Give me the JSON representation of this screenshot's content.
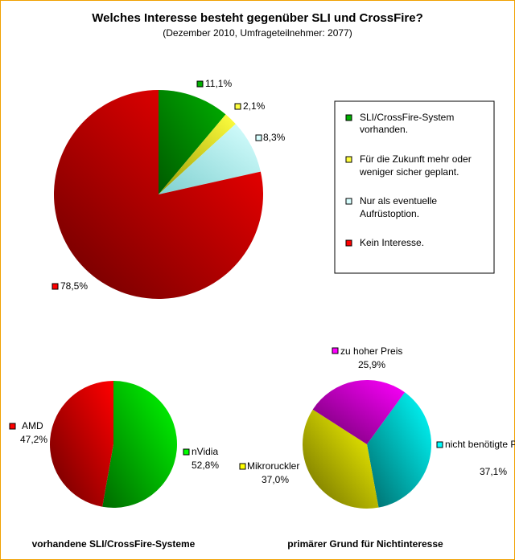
{
  "title": "Welches Interesse besteht gegenüber SLI und CrossFire?",
  "subtitle": "(Dezember 2010, Umfrageteilnehmer: 2077)",
  "chart_data": [
    {
      "type": "pie",
      "title": "Welches Interesse besteht gegenüber SLI und CrossFire?",
      "subtitle": "(Dezember 2010, Umfrageteilnehmer: 2077)",
      "legend_position": "right",
      "slices": [
        {
          "legend": [
            "SLI/CrossFire-System",
            "vorhanden."
          ],
          "value": 11.1,
          "label": "11,1%",
          "color": "#00b000",
          "dark": "#005a00"
        },
        {
          "legend": [
            "Für die Zukunft mehr oder",
            "weniger sicher geplant."
          ],
          "value": 2.1,
          "label": "2,1%",
          "color": "#ffff40",
          "dark": "#9a9a00"
        },
        {
          "legend": [
            "Nur als eventuelle",
            "Aufrüstoption."
          ],
          "value": 8.3,
          "label": "8,3%",
          "color": "#d8ffff",
          "dark": "#7fd0d0"
        },
        {
          "legend": [
            "Kein Interesse."
          ],
          "value": 78.5,
          "label": "78,5%",
          "color": "#ff0000",
          "dark": "#6a0000"
        }
      ]
    },
    {
      "type": "pie",
      "title": "vorhandene SLI/CrossFire-Systeme",
      "slices": [
        {
          "name": "nVidia",
          "value": 52.8,
          "label": "52,8%",
          "color": "#00ff00",
          "dark": "#006a00"
        },
        {
          "name": "AMD",
          "value": 47.2,
          "label": "47,2%",
          "color": "#ff0000",
          "dark": "#6a0000"
        }
      ]
    },
    {
      "type": "pie",
      "title": "primärer Grund für Nichtinteresse",
      "slices": [
        {
          "name": "nicht benötigte Performance",
          "value": 37.1,
          "label": "37,1%",
          "color": "#00ffff",
          "dark": "#006a6a"
        },
        {
          "name": "Mikroruckler",
          "value": 37.0,
          "label": "37,0%",
          "color": "#ffff00",
          "dark": "#6a6a00"
        },
        {
          "name": "zu hoher Preis",
          "value": 25.9,
          "label": "25,9%",
          "color": "#ff00ff",
          "dark": "#6a006a"
        }
      ]
    }
  ]
}
